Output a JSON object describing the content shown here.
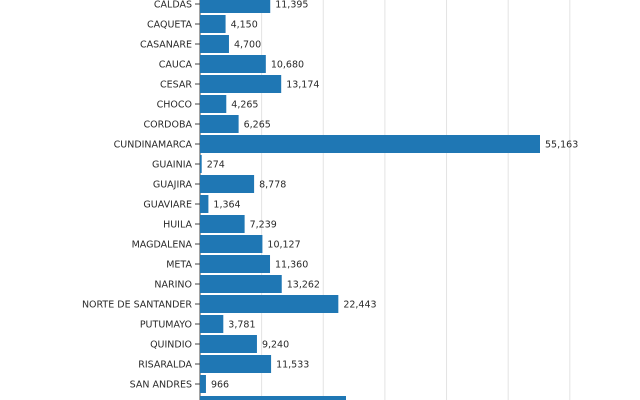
{
  "chart_data": {
    "type": "bar",
    "orientation": "horizontal",
    "title": "",
    "xlabel": "",
    "ylabel": "",
    "xlim": [
      0,
      60000
    ],
    "grid": true,
    "bar_color": "#1f77b4",
    "categories": [
      "CALDAS",
      "CAQUETA",
      "CASANARE",
      "CAUCA",
      "CESAR",
      "CHOCO",
      "CORDOBA",
      "CUNDINAMARCA",
      "GUAINIA",
      "GUAJIRA",
      "GUAVIARE",
      "HUILA",
      "MAGDALENA",
      "META",
      "NARINO",
      "NORTE DE SANTANDER",
      "PUTUMAYO",
      "QUINDIO",
      "RISARALDA",
      "SAN ANDRES"
    ],
    "values": [
      11395,
      4150,
      4700,
      10680,
      13174,
      4265,
      6265,
      55163,
      274,
      8778,
      1364,
      7239,
      10127,
      11360,
      13262,
      22443,
      3781,
      9240,
      11533,
      966
    ],
    "value_labels": [
      "11,395",
      "4,150",
      "4,700",
      "10,680",
      "13,174",
      "4,265",
      "6,265",
      "55,163",
      "274",
      "8,778",
      "1,364",
      "7,239",
      "10,127",
      "11,360",
      "13,262",
      "22,443",
      "3,781",
      "9,240",
      "11,533",
      "966"
    ]
  }
}
